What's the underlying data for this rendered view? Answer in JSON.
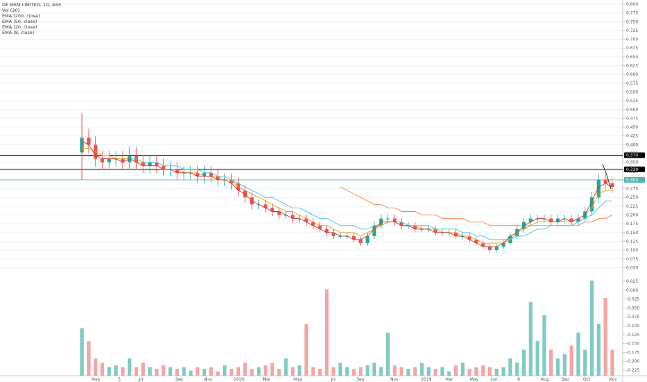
{
  "legend": {
    "title": "DE.MEM LIMITED, 1D, ASX",
    "vol": "Vol (20)",
    "ema200": "EMA (200, close)",
    "ema50": "EMA (50, close)",
    "ema20": "EMA (20, close)",
    "ema8": "EMA (8, close)"
  },
  "chart_data": {
    "type": "candlestick",
    "symbol": "DE.MEM LIMITED, 1D, ASX",
    "x_labels": [
      "May",
      "5",
      "Jul",
      "Sep",
      "Nov",
      "2018",
      "Mar",
      "May",
      "Jul",
      "Sep",
      "Nov",
      "2019",
      "Mar",
      "May",
      "Jun",
      "8",
      "Aug",
      "Sep",
      "Oct",
      "Nov"
    ],
    "price_axis": {
      "ticks": [
        "0.800",
        "0.775",
        "0.750",
        "0.725",
        "0.700",
        "0.675",
        "0.650",
        "0.625",
        "0.600",
        "0.575",
        "0.550",
        "0.525",
        "0.500",
        "0.475",
        "0.450",
        "0.425",
        "0.400",
        "0.375",
        "0.350",
        "0.325",
        "0.300",
        "0.275",
        "0.250",
        "0.225",
        "0.200",
        "0.175",
        "0.150",
        "0.125",
        "0.100",
        "0.075",
        "0.050"
      ],
      "range": [
        0.035,
        0.8
      ]
    },
    "volume_axis": {
      "ticks": [
        "0.025",
        "0.000",
        "-0.025",
        "-0.050",
        "-0.075",
        "-0.100",
        "-0.125",
        "-0.150",
        "-0.175",
        "-0.200",
        "-0.225"
      ]
    },
    "horizontal_levels": [
      {
        "label": "0.370",
        "value": 0.37,
        "color": "#000000"
      },
      {
        "label": "0.330",
        "value": 0.33,
        "color": "#000000"
      },
      {
        "label": "0.300",
        "value": 0.3,
        "color": "#50b8b0"
      }
    ],
    "close": [
      0.42,
      0.4,
      0.36,
      0.35,
      0.36,
      0.36,
      0.35,
      0.37,
      0.35,
      0.34,
      0.35,
      0.34,
      0.33,
      0.33,
      0.32,
      0.32,
      0.32,
      0.31,
      0.32,
      0.31,
      0.3,
      0.3,
      0.29,
      0.27,
      0.25,
      0.23,
      0.23,
      0.22,
      0.21,
      0.2,
      0.2,
      0.19,
      0.19,
      0.18,
      0.17,
      0.16,
      0.15,
      0.14,
      0.14,
      0.14,
      0.13,
      0.12,
      0.14,
      0.17,
      0.19,
      0.19,
      0.18,
      0.17,
      0.17,
      0.16,
      0.16,
      0.16,
      0.15,
      0.15,
      0.15,
      0.14,
      0.14,
      0.13,
      0.12,
      0.11,
      0.1,
      0.11,
      0.12,
      0.14,
      0.16,
      0.18,
      0.19,
      0.19,
      0.19,
      0.18,
      0.19,
      0.19,
      0.18,
      0.19,
      0.21,
      0.25,
      0.3,
      0.29,
      0.28
    ],
    "ema8": [
      0.41,
      0.4,
      0.37,
      0.36,
      0.36,
      0.36,
      0.35,
      0.36,
      0.35,
      0.34,
      0.34,
      0.34,
      0.33,
      0.33,
      0.32,
      0.32,
      0.32,
      0.31,
      0.31,
      0.31,
      0.3,
      0.3,
      0.29,
      0.27,
      0.26,
      0.24,
      0.23,
      0.22,
      0.21,
      0.21,
      0.2,
      0.19,
      0.19,
      0.18,
      0.17,
      0.16,
      0.15,
      0.15,
      0.14,
      0.14,
      0.13,
      0.13,
      0.14,
      0.16,
      0.18,
      0.18,
      0.18,
      0.17,
      0.17,
      0.16,
      0.16,
      0.16,
      0.15,
      0.15,
      0.15,
      0.14,
      0.14,
      0.13,
      0.12,
      0.11,
      0.11,
      0.11,
      0.12,
      0.14,
      0.15,
      0.17,
      0.18,
      0.19,
      0.19,
      0.18,
      0.18,
      0.19,
      0.18,
      0.19,
      0.2,
      0.24,
      0.28,
      0.29,
      0.28
    ],
    "ema20": [
      0.39,
      0.39,
      0.38,
      0.37,
      0.37,
      0.36,
      0.36,
      0.36,
      0.35,
      0.35,
      0.34,
      0.34,
      0.33,
      0.33,
      0.33,
      0.32,
      0.32,
      0.32,
      0.31,
      0.31,
      0.31,
      0.3,
      0.3,
      0.28,
      0.27,
      0.26,
      0.25,
      0.24,
      0.23,
      0.22,
      0.21,
      0.21,
      0.2,
      0.19,
      0.18,
      0.17,
      0.17,
      0.16,
      0.15,
      0.15,
      0.15,
      0.14,
      0.15,
      0.16,
      0.17,
      0.18,
      0.18,
      0.17,
      0.17,
      0.17,
      0.16,
      0.16,
      0.16,
      0.15,
      0.15,
      0.15,
      0.14,
      0.14,
      0.13,
      0.12,
      0.12,
      0.12,
      0.12,
      0.13,
      0.15,
      0.16,
      0.17,
      0.18,
      0.18,
      0.18,
      0.18,
      0.18,
      0.18,
      0.19,
      0.2,
      0.22,
      0.26,
      0.27,
      0.27
    ],
    "ema50": [
      null,
      null,
      null,
      null,
      null,
      null,
      0.36,
      0.36,
      0.36,
      0.35,
      0.35,
      0.35,
      0.34,
      0.34,
      0.34,
      0.33,
      0.33,
      0.33,
      0.32,
      0.32,
      0.31,
      0.31,
      0.3,
      0.29,
      0.28,
      0.27,
      0.26,
      0.25,
      0.25,
      0.24,
      0.23,
      0.22,
      0.22,
      0.21,
      0.2,
      0.19,
      0.19,
      0.18,
      0.17,
      0.17,
      0.17,
      0.16,
      0.16,
      0.17,
      0.17,
      0.18,
      0.18,
      0.18,
      0.17,
      0.17,
      0.17,
      0.17,
      0.16,
      0.16,
      0.16,
      0.16,
      0.15,
      0.15,
      0.14,
      0.14,
      0.13,
      0.13,
      0.13,
      0.13,
      0.14,
      0.14,
      0.15,
      0.16,
      0.16,
      0.17,
      0.17,
      0.17,
      0.17,
      0.18,
      0.19,
      0.2,
      0.22,
      0.24,
      0.24
    ],
    "ema200": [
      null,
      null,
      null,
      null,
      null,
      null,
      null,
      null,
      null,
      null,
      null,
      null,
      null,
      null,
      null,
      null,
      null,
      null,
      null,
      null,
      null,
      null,
      null,
      null,
      null,
      null,
      null,
      null,
      null,
      null,
      null,
      null,
      null,
      null,
      null,
      null,
      null,
      null,
      0.28,
      0.27,
      0.26,
      0.25,
      0.24,
      0.23,
      0.23,
      0.22,
      0.22,
      0.21,
      0.21,
      0.21,
      0.2,
      0.2,
      0.2,
      0.19,
      0.19,
      0.19,
      0.19,
      0.18,
      0.18,
      0.18,
      0.17,
      0.17,
      0.17,
      0.17,
      0.17,
      0.17,
      0.17,
      0.17,
      0.17,
      0.17,
      0.17,
      0.17,
      0.17,
      0.17,
      0.18,
      0.18,
      0.19,
      0.19,
      0.2
    ],
    "volume": [
      0.55,
      0.4,
      0.2,
      0.15,
      0.1,
      0.12,
      0.1,
      0.2,
      0.1,
      0.15,
      0.1,
      0.08,
      0.12,
      0.1,
      0.08,
      0.1,
      0.06,
      0.1,
      0.08,
      0.1,
      0.05,
      0.12,
      0.08,
      0.1,
      0.15,
      0.08,
      0.1,
      0.12,
      0.15,
      0.08,
      0.2,
      0.1,
      0.12,
      0.6,
      0.1,
      0.08,
      1.0,
      0.1,
      0.15,
      0.1,
      0.08,
      0.1,
      0.12,
      0.15,
      0.1,
      0.5,
      0.12,
      0.1,
      0.08,
      0.1,
      0.15,
      0.1,
      0.08,
      0.1,
      0.05,
      0.12,
      0.15,
      0.08,
      0.1,
      0.12,
      0.1,
      0.08,
      0.1,
      0.2,
      0.15,
      0.3,
      0.85,
      0.4,
      0.7,
      0.3,
      0.2,
      0.25,
      0.35,
      0.5,
      0.3,
      1.1,
      0.6,
      0.9,
      0.3
    ],
    "last_wick_line": true
  },
  "colors": {
    "up": "#26a69a",
    "down": "#ef5350",
    "ema8": "#c1392b",
    "ema20": "#f39c12",
    "ema50": "#4fc3f7",
    "ema200": "#f5894b",
    "grid": "#eef1f4"
  }
}
